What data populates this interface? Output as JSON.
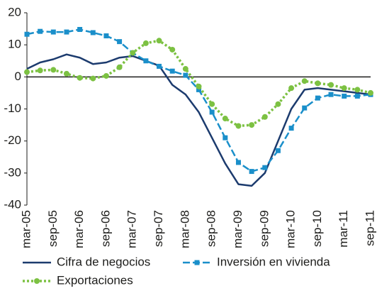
{
  "chart_data": {
    "type": "line",
    "categories": [
      "mar-05",
      null,
      "sep-05",
      null,
      "mar-06",
      null,
      "sep-06",
      null,
      "mar-07",
      null,
      "sep-07",
      null,
      "mar-08",
      null,
      "sep-08",
      null,
      "mar-09",
      null,
      "sep-09",
      null,
      "mar-10",
      null,
      "sep-10",
      null,
      "mar-11",
      null,
      "sep-11"
    ],
    "series": [
      {
        "name": "Cifra de negocios",
        "color": "#1c3b6e",
        "style": "solid",
        "marker": "none",
        "values": [
          2.5,
          4.5,
          5.5,
          7,
          6,
          4,
          4.5,
          6,
          6.5,
          5,
          3.5,
          -2.5,
          -5.5,
          -11,
          -19,
          -27,
          -33.5,
          -34,
          -30,
          -20,
          -10,
          -4,
          -3.5,
          -4,
          -4.5,
          -5,
          -5.5
        ]
      },
      {
        "name": "Inversión en vivienda",
        "color": "#1a8fca",
        "style": "dashed",
        "marker": "square",
        "values": [
          13.3,
          14.2,
          14,
          14,
          14.8,
          13.8,
          12.8,
          11,
          7.5,
          5,
          3.3,
          1.8,
          0.5,
          -4,
          -11,
          -19,
          -26.7,
          -29.5,
          -28.3,
          -23,
          -16,
          -9.7,
          -6.6,
          -5.5,
          -6,
          -6,
          -5.5
        ]
      },
      {
        "name": "Exportaciones",
        "color": "#7cc142",
        "style": "dotted",
        "marker": "circle",
        "values": [
          1.5,
          2,
          2.2,
          1,
          -0.3,
          -0.5,
          0.3,
          3,
          7.5,
          10.5,
          11.3,
          8.5,
          2.5,
          -3,
          -8.5,
          -13,
          -15.3,
          -15,
          -12.5,
          -8.5,
          -3.5,
          -1.3,
          -2,
          -2.5,
          -3.5,
          -4,
          -5
        ]
      }
    ],
    "ylim": [
      -40,
      20
    ],
    "yticks": [
      -40,
      -30,
      -20,
      -10,
      0,
      10,
      20
    ],
    "grid": false
  }
}
